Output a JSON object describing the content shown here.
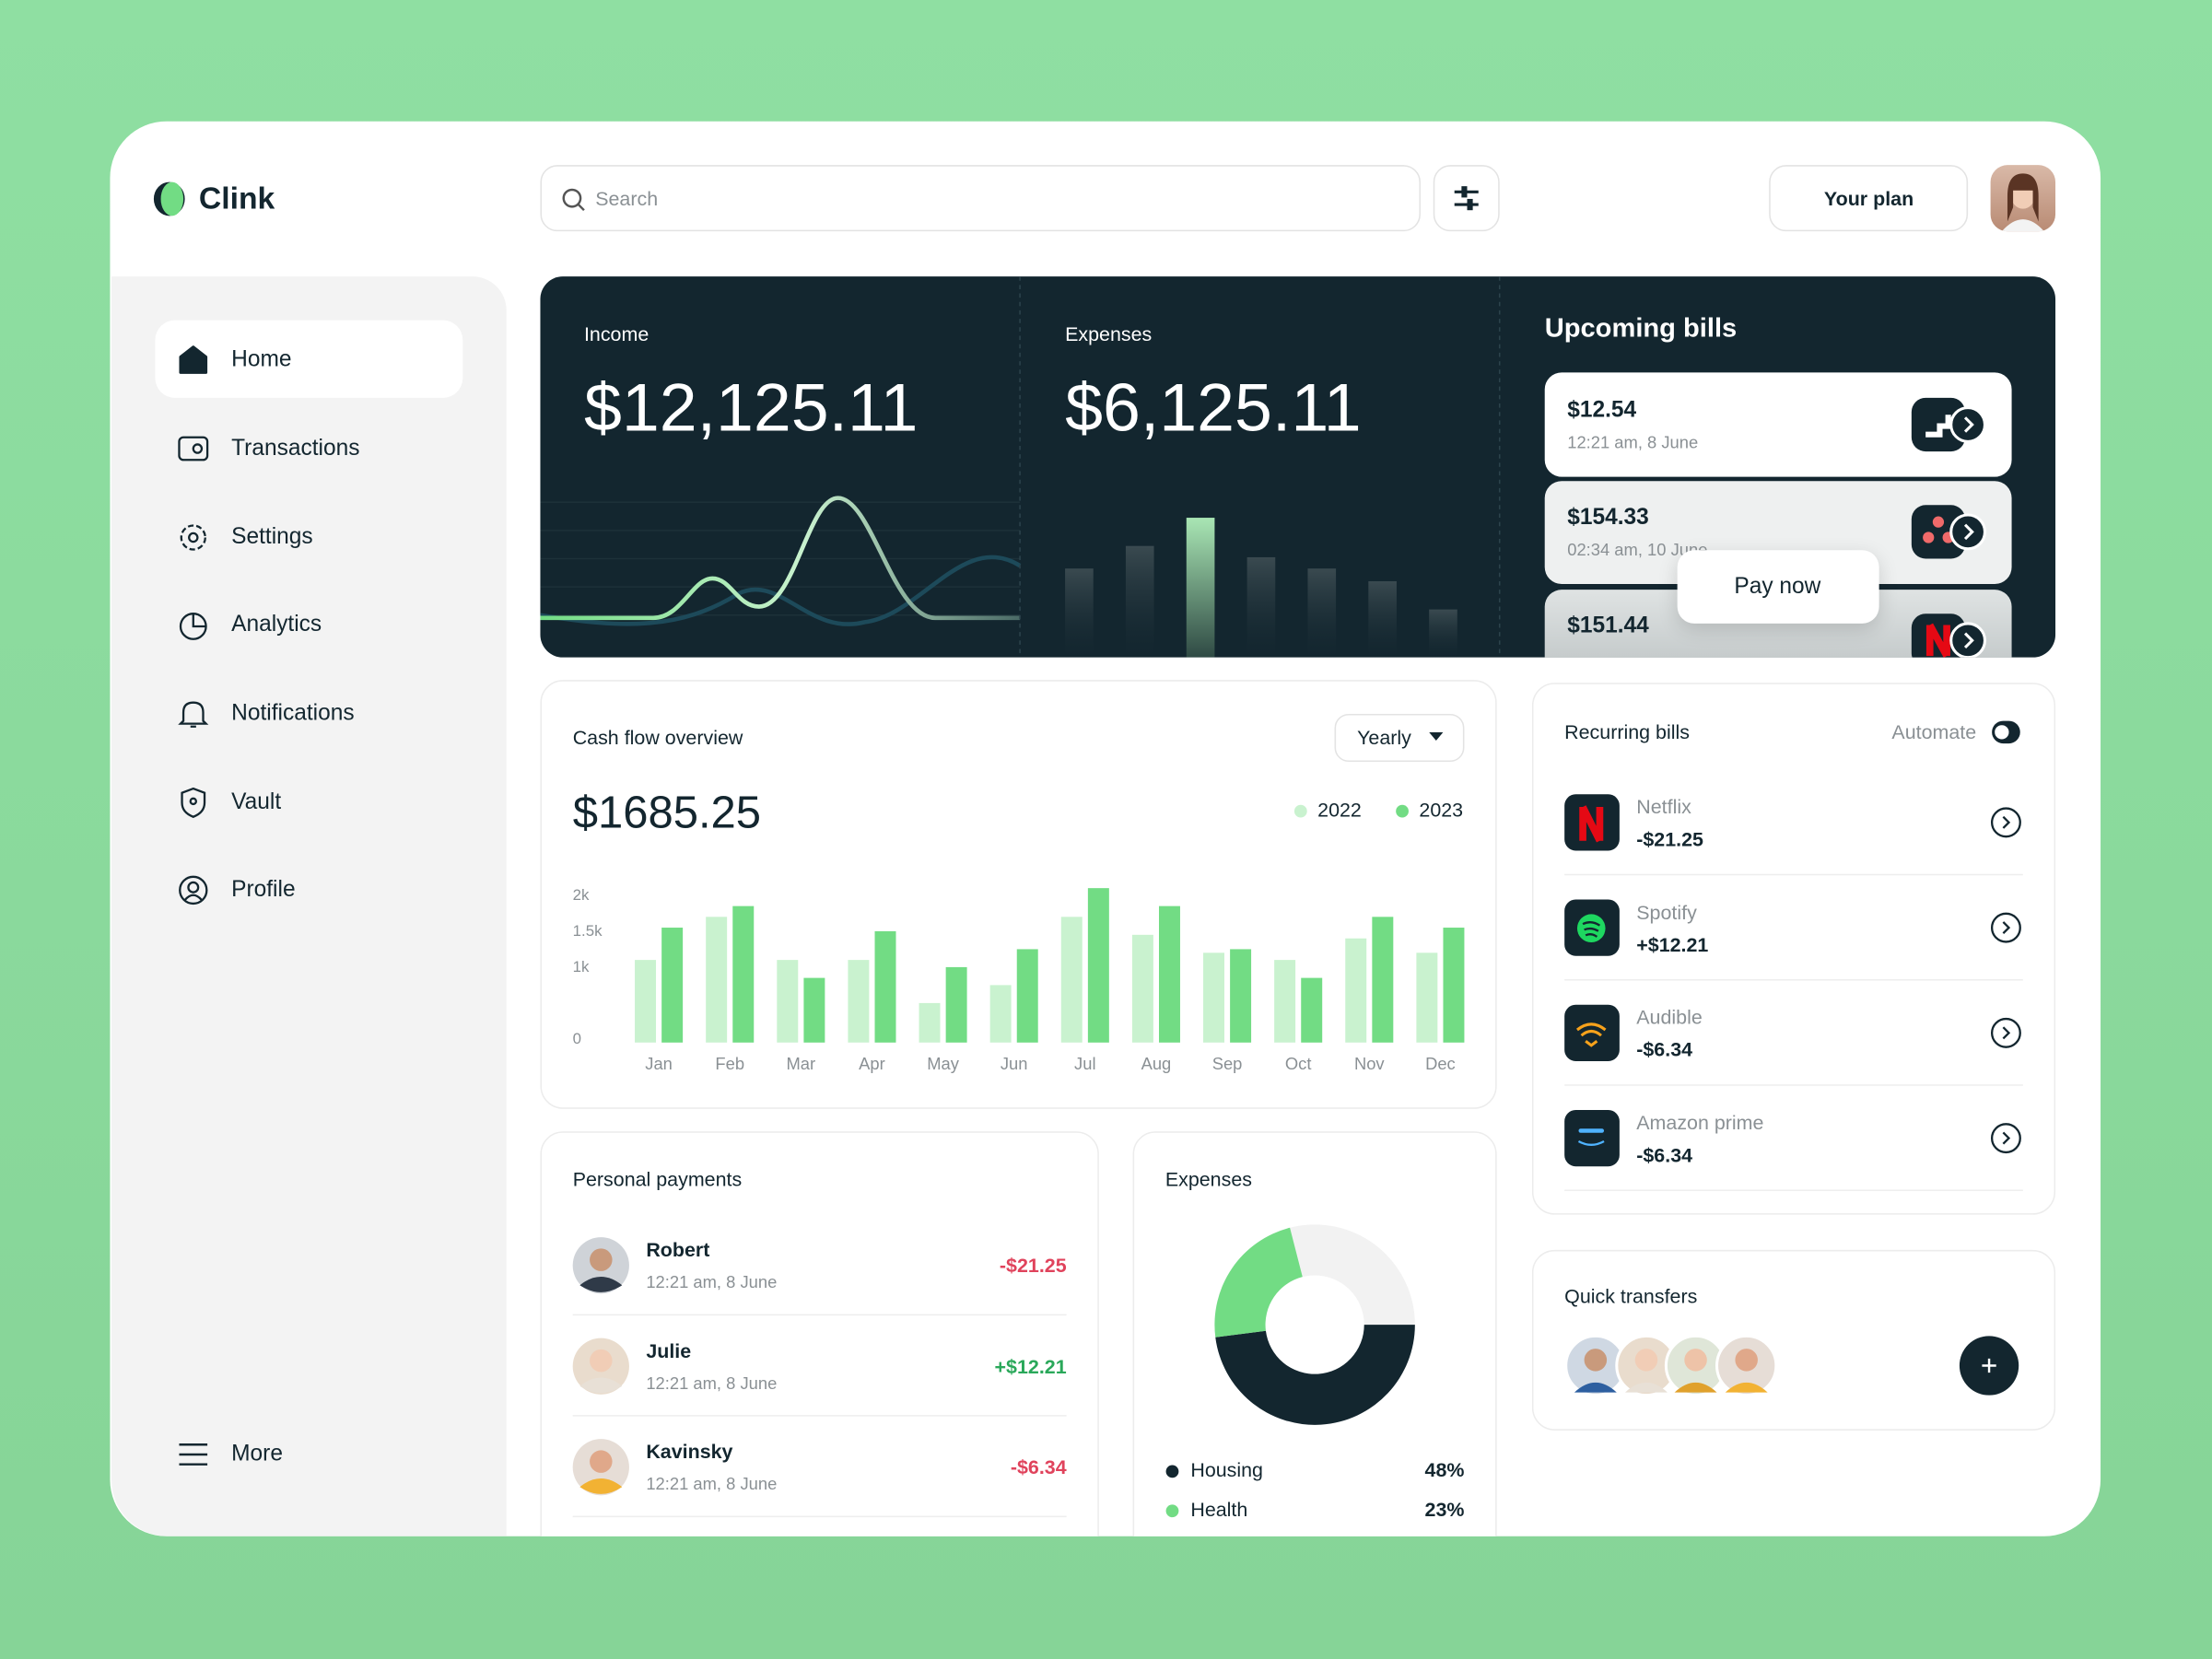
{
  "app": {
    "brand": "Clink",
    "search_placeholder": "Search",
    "plan_button": "Your plan"
  },
  "nav": {
    "items": [
      "Home",
      "Transactions",
      "Settings",
      "Analytics",
      "Notifications",
      "Vault",
      "Profile"
    ],
    "more": "More"
  },
  "summary": {
    "income_label": "Income",
    "income": "$12,125.11",
    "expenses_label": "Expenses",
    "expenses": "$6,125.11"
  },
  "upcoming_bills": {
    "title": "Upcoming bills",
    "items": [
      {
        "amount": "$12.54",
        "time": "12:21 am, 8 June"
      },
      {
        "amount": "$154.33",
        "time": "02:34 am, 10 June"
      },
      {
        "amount": "$151.44"
      }
    ],
    "action": "Pay now"
  },
  "cash_flow": {
    "type": "bar",
    "title": "Cash flow overview",
    "period": "Yearly",
    "total": "$1685.25",
    "categories": [
      "Jan",
      "Feb",
      "Mar",
      "Apr",
      "May",
      "Jun",
      "Jul",
      "Aug",
      "Sep",
      "Oct",
      "Nov",
      "Dec"
    ],
    "series": [
      {
        "name": "2022",
        "color": "#c9f2cf",
        "values": [
          1150,
          1750,
          1150,
          1150,
          550,
          800,
          1750,
          1500,
          1250,
          1150,
          1450,
          1250
        ]
      },
      {
        "name": "2023",
        "color": "#72dc84",
        "values": [
          1600,
          1900,
          900,
          1550,
          1050,
          1300,
          2150,
          1900,
          1300,
          900,
          1750,
          1600
        ]
      }
    ],
    "ylim": [
      0,
      2200
    ],
    "yticks": [
      0,
      {
        "value": 1000,
        "label": "1k"
      },
      {
        "value": 1500,
        "label": "1.5k"
      },
      {
        "value": 2000,
        "label": "2k"
      }
    ]
  },
  "recurring_bills": {
    "title": "Recurring bills",
    "automate": "Automate",
    "items": [
      {
        "name": "Netflix",
        "amount": "-$21.25"
      },
      {
        "name": "Spotify",
        "amount": "+$12.21"
      },
      {
        "name": "Audible",
        "amount": "-$6.34"
      },
      {
        "name": "Amazon prime",
        "amount": "-$6.34"
      }
    ]
  },
  "quick_transfers": {
    "title": "Quick transfers"
  },
  "personal_payments": {
    "title": "Personal payments",
    "items": [
      {
        "name": "Robert",
        "time": "12:21 am, 8 June",
        "amount": "-$21.25"
      },
      {
        "name": "Julie",
        "time": "12:21 am, 8 June",
        "amount": "+$12.21"
      },
      {
        "name": "Kavinsky",
        "time": "12:21 am, 8 June",
        "amount": "-$6.34"
      }
    ]
  },
  "expenses_breakdown": {
    "type": "pie",
    "title": "Expenses",
    "categories": [
      "Housing",
      "Health"
    ],
    "values": [
      48,
      23
    ],
    "value_labels": [
      "48%",
      "23%"
    ],
    "colors": [
      "#13262f",
      "#72dc84"
    ]
  }
}
